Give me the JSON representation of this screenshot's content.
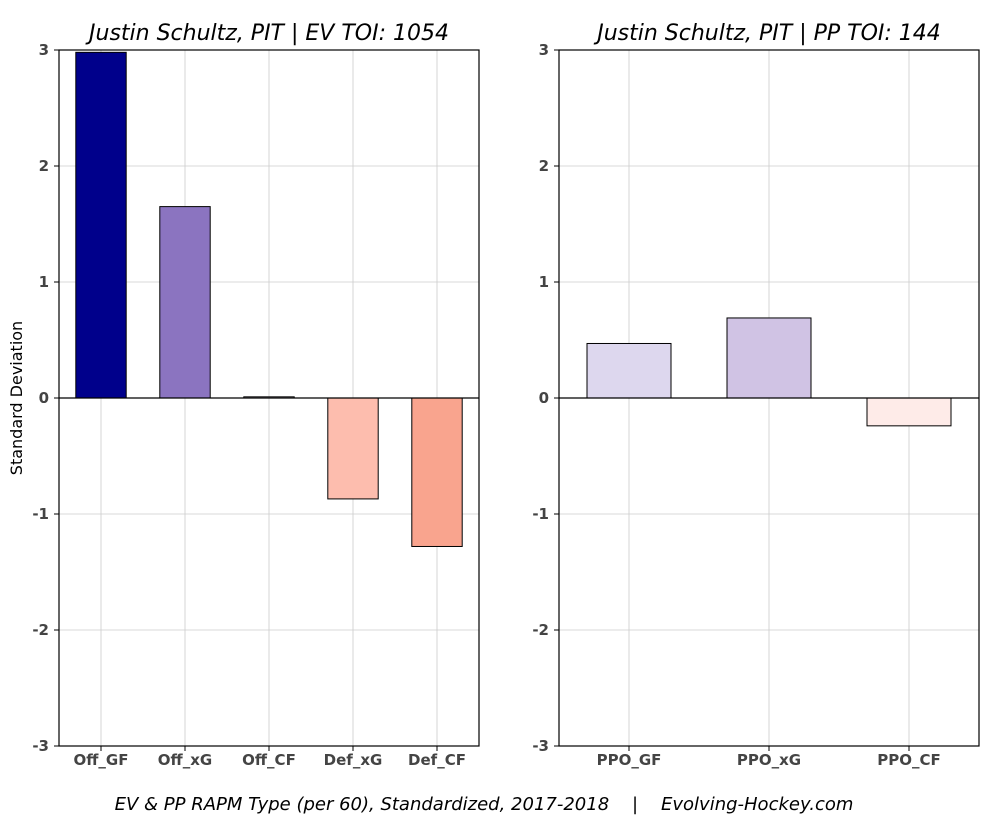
{
  "footer": "EV & PP RAPM Type (per 60), Standardized, 2017-2018    |    Evolving-Hockey.com",
  "chart_data": [
    {
      "type": "bar",
      "title": "Justin Schultz, PIT  |  EV TOI: 1054",
      "ylabel": "Standard Deviation",
      "xlabel": "",
      "ylim": [
        -3,
        3
      ],
      "yticks": [
        -3,
        -2,
        -1,
        0,
        1,
        2,
        3
      ],
      "grid": true,
      "categories": [
        "Off_GF",
        "Off_xG",
        "Off_CF",
        "Def_xG",
        "Def_CF"
      ],
      "values": [
        2.98,
        1.65,
        0.01,
        -0.87,
        -1.28
      ],
      "colors": [
        "#00008b",
        "#8b74c0",
        "#f4f0f8",
        "#fdbdae",
        "#f9a48e"
      ]
    },
    {
      "type": "bar",
      "title": "Justin Schultz, PIT  |  PP TOI: 144",
      "ylabel": "",
      "xlabel": "",
      "ylim": [
        -3,
        3
      ],
      "yticks": [
        -3,
        -2,
        -1,
        0,
        1,
        2,
        3
      ],
      "grid": true,
      "categories": [
        "PPO_GF",
        "PPO_xG",
        "PPO_CF"
      ],
      "values": [
        0.47,
        0.69,
        -0.24
      ],
      "colors": [
        "#ddd7ee",
        "#d0c3e4",
        "#feebe8"
      ]
    }
  ]
}
